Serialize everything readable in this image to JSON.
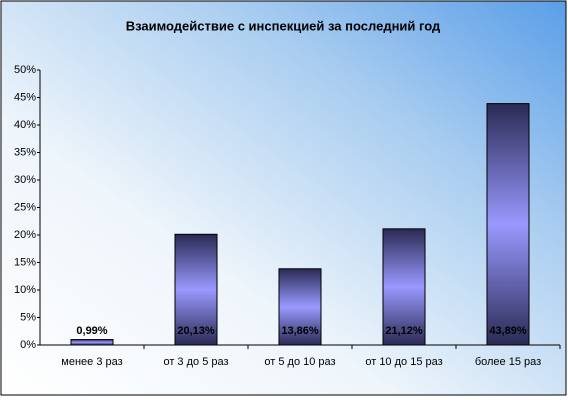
{
  "chart_data": {
    "type": "bar",
    "title": "Взаимодействие с инспекцией за последний год",
    "categories": [
      "менее 3 раз",
      "от 3 до 5 раз",
      "от 5 до 10 раз",
      "от 10 до 15 раз",
      "более 15 раз"
    ],
    "values": [
      0.99,
      20.13,
      13.86,
      21.12,
      43.89
    ],
    "value_labels": [
      "0,99%",
      "20,13%",
      "13,86%",
      "21,12%",
      "43,89%"
    ],
    "color": "#9999ff",
    "ylim": [
      0,
      50
    ],
    "yticks": [
      {
        "value": 0,
        "label": "0%"
      },
      {
        "value": 5,
        "label": "5%"
      },
      {
        "value": 10,
        "label": "10%"
      },
      {
        "value": 15,
        "label": "15%"
      },
      {
        "value": 20,
        "label": "20%"
      },
      {
        "value": 25,
        "label": "25%"
      },
      {
        "value": 30,
        "label": "30%"
      },
      {
        "value": 35,
        "label": "35%"
      },
      {
        "value": 40,
        "label": "40%"
      },
      {
        "value": 45,
        "label": "45%"
      },
      {
        "value": 50,
        "label": "50%"
      }
    ],
    "grid": false
  }
}
